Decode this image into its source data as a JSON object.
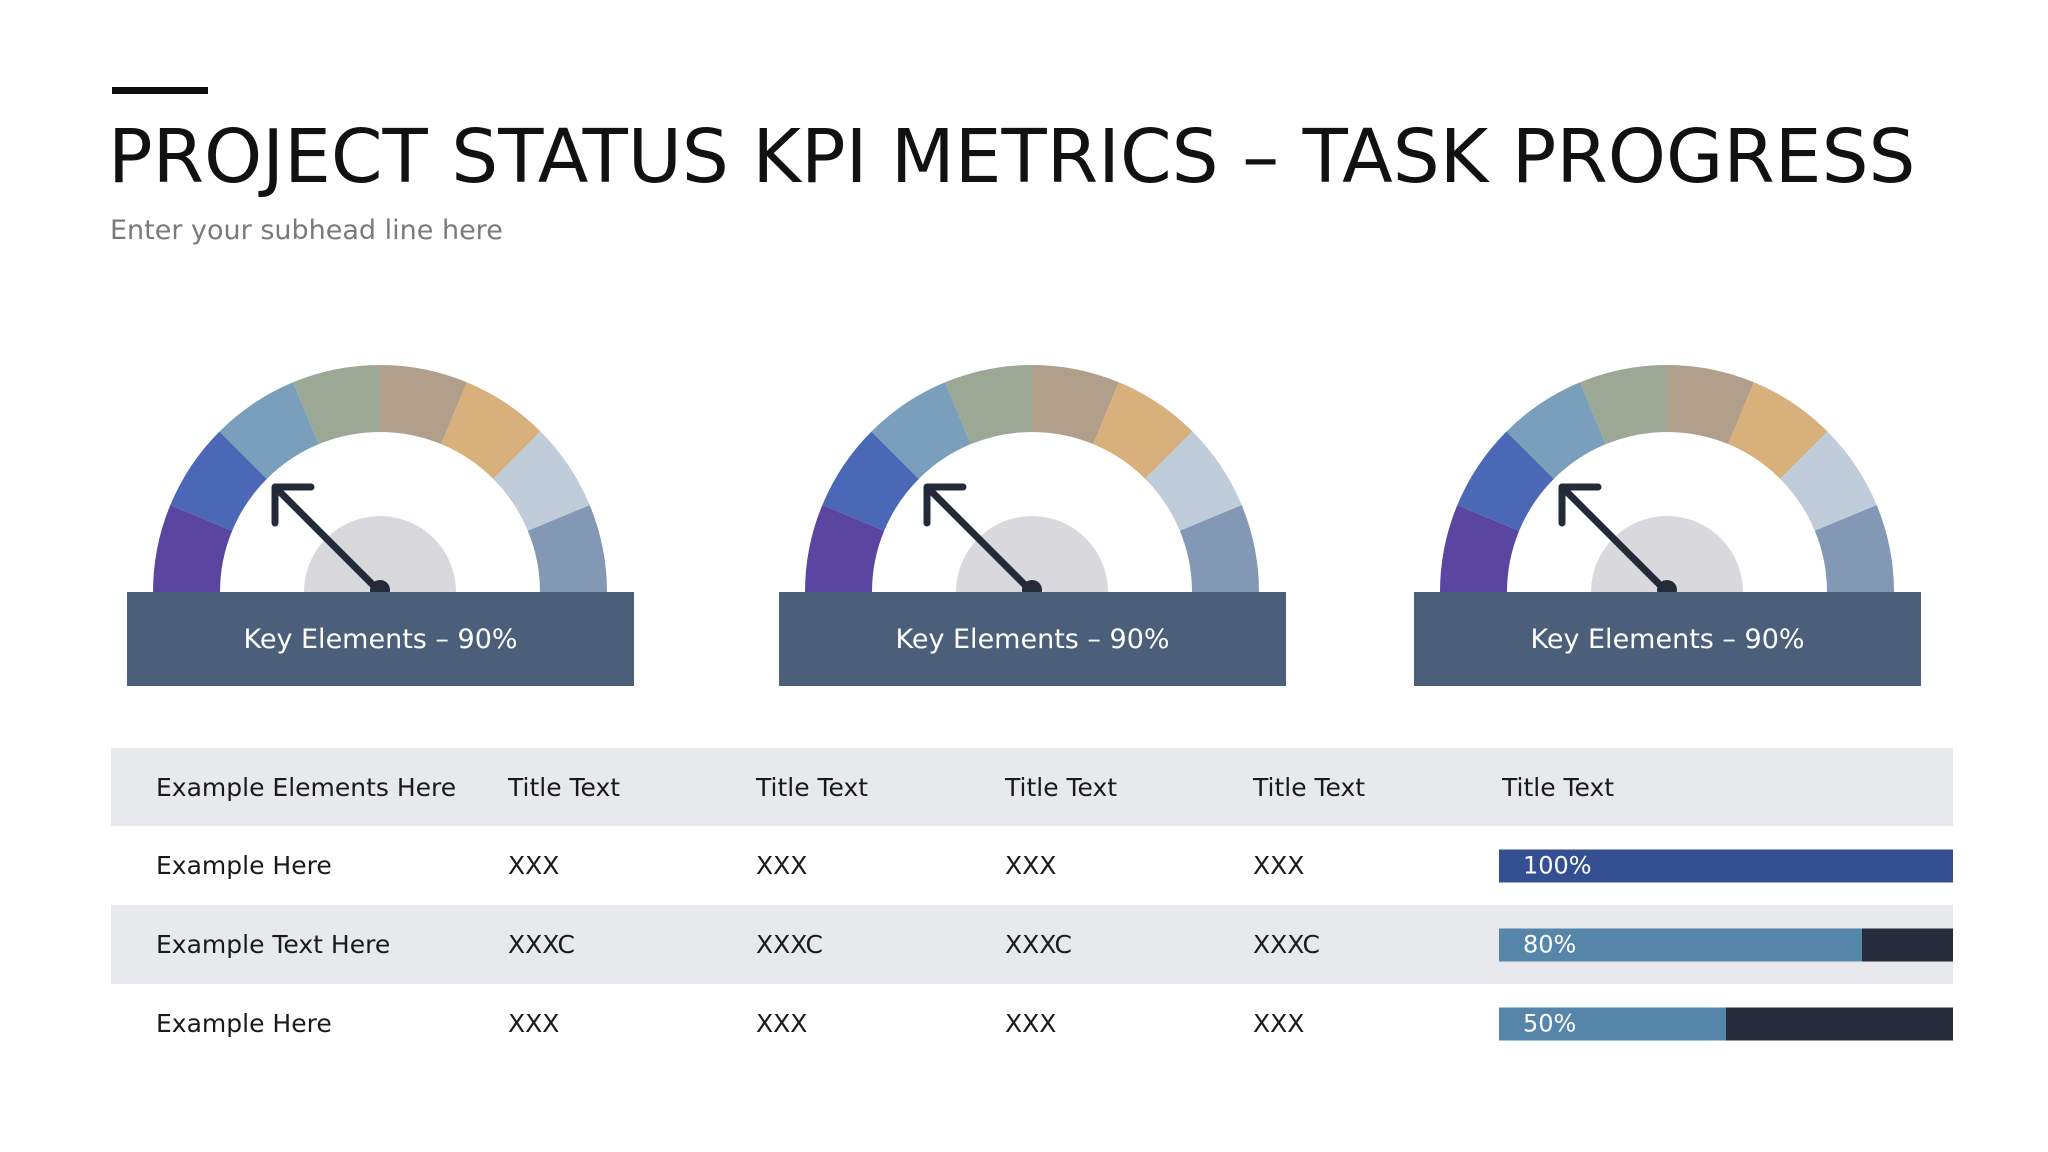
{
  "header": {
    "title": "PROJECT STATUS KPI METRICS – TASK PROGRESS",
    "subtitle": "Enter your subhead line here"
  },
  "gauges": [
    {
      "label": "Key Elements – 90%"
    },
    {
      "label": "Key Elements – 90%"
    },
    {
      "label": "Key Elements – 90%"
    }
  ],
  "gauge_colors": [
    "#5a45a0",
    "#4a68b6",
    "#799fbc",
    "#9ba896",
    "#b29f8b",
    "#d8b07b",
    "#c0ccd9",
    "#8398b4"
  ],
  "table": {
    "headers": [
      "Example Elements Here",
      "Title Text",
      "Title Text",
      "Title Text",
      "Title Text",
      "Title Text"
    ],
    "rows": [
      {
        "cells": [
          "Example Here",
          "XXX",
          "XXX",
          "XXX",
          "XXX"
        ],
        "progress": 1.0,
        "progress_label": "100%",
        "color": "#344f92"
      },
      {
        "cells": [
          "Example Text Here",
          "XXXC",
          "XXXC",
          "XXXC",
          "XXXC"
        ],
        "progress": 0.8,
        "progress_label": "80%",
        "color": "#5585a8"
      },
      {
        "cells": [
          "Example Here",
          "XXX",
          "XXX",
          "XXX",
          "XXX"
        ],
        "progress": 0.5,
        "progress_label": "50%",
        "color": "#5585a8"
      }
    ]
  }
}
